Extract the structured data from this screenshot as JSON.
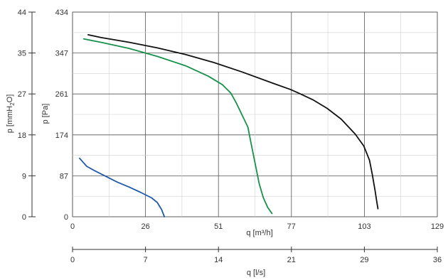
{
  "chart_data": {
    "type": "line",
    "title": "",
    "grid": true,
    "x_axis_primary": {
      "label": "q [m³/h]",
      "range": [
        0,
        129
      ],
      "tick_labels": [
        "0",
        "26",
        "51",
        "77",
        "103",
        "129"
      ]
    },
    "x_axis_secondary": {
      "label": "q [l/s]",
      "range": [
        0,
        36
      ],
      "tick_labels": [
        "0",
        "7",
        "14",
        "21",
        "29",
        "36"
      ]
    },
    "y_axis_primary": {
      "label": "p [Pa]",
      "range": [
        0,
        434
      ],
      "tick_labels": [
        "0",
        "87",
        "174",
        "261",
        "347",
        "434"
      ]
    },
    "y_axis_secondary": {
      "label_main": "p [mmH",
      "label_sub": "2",
      "label_end": "O]",
      "range": [
        0,
        44
      ],
      "tick_labels": [
        "0",
        "9",
        "18",
        "27",
        "35",
        "44"
      ]
    },
    "series": [
      {
        "color": "#111111",
        "points": [
          [
            5.5,
            386
          ],
          [
            10,
            380
          ],
          [
            20,
            370
          ],
          [
            30,
            358
          ],
          [
            40,
            344
          ],
          [
            50,
            327
          ],
          [
            60,
            307
          ],
          [
            70,
            285
          ],
          [
            77,
            270
          ],
          [
            80,
            262
          ],
          [
            85,
            248
          ],
          [
            90,
            230
          ],
          [
            95,
            207
          ],
          [
            100,
            175
          ],
          [
            103,
            150
          ],
          [
            105,
            120
          ],
          [
            106,
            90
          ],
          [
            107,
            55
          ],
          [
            107.5,
            35
          ],
          [
            108,
            17
          ]
        ]
      },
      {
        "color": "#16914a",
        "points": [
          [
            4,
            377
          ],
          [
            10,
            370
          ],
          [
            20,
            357
          ],
          [
            30,
            340
          ],
          [
            40,
            320
          ],
          [
            48,
            298
          ],
          [
            53,
            280
          ],
          [
            56,
            262
          ],
          [
            58,
            240
          ],
          [
            60,
            215
          ],
          [
            62,
            190
          ],
          [
            63,
            160
          ],
          [
            64,
            130
          ],
          [
            65,
            100
          ],
          [
            66,
            70
          ],
          [
            67.5,
            40
          ],
          [
            69,
            20
          ],
          [
            70.5,
            7
          ]
        ]
      },
      {
        "color": "#1f5aa8",
        "points": [
          [
            2.5,
            124
          ],
          [
            5,
            107
          ],
          [
            8,
            97
          ],
          [
            12,
            85
          ],
          [
            16,
            73
          ],
          [
            20,
            63
          ],
          [
            24,
            52
          ],
          [
            28,
            40
          ],
          [
            30,
            30
          ],
          [
            31.5,
            15
          ],
          [
            32.5,
            0
          ]
        ]
      }
    ]
  }
}
